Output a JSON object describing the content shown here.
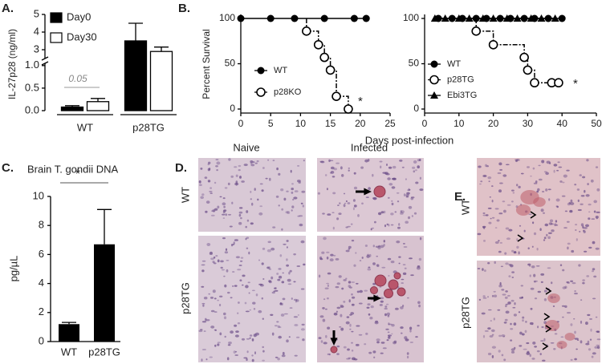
{
  "figure": {
    "panel_labels": [
      "A.",
      "B.",
      "C.",
      "D.",
      "E."
    ],
    "d_columns": [
      "Naive",
      "Infected"
    ],
    "d_rows": [
      "WT",
      "p28TG"
    ],
    "e_rows": [
      "WT",
      "p28TG"
    ]
  },
  "chart_data": [
    {
      "type": "bar",
      "ylabel": "IL-27p28 (ng/ml)",
      "categories": [
        "WT",
        "p28TG"
      ],
      "series": [
        {
          "name": "Day0",
          "color": "#000000",
          "values": [
            0.08,
            3.5
          ],
          "errors": [
            0.03,
            1.0
          ]
        },
        {
          "name": "Day30",
          "color": "#ffffff",
          "values": [
            0.2,
            2.9
          ],
          "errors": [
            0.07,
            0.25
          ]
        }
      ],
      "ylim": [
        0,
        5
      ],
      "ybreak": [
        1.05,
        2.5
      ],
      "yticks": [
        {
          "value": 0,
          "label": "0.0"
        },
        0.5,
        {
          "value": 1,
          "label": "1.0"
        },
        3,
        4,
        5
      ],
      "annotation": "0.05",
      "legend": "upper left"
    },
    {
      "type": "line",
      "ylabel": "Percent Survival",
      "xlabel": "Days post-infection",
      "series": [
        {
          "name": "WT",
          "marker": "circle",
          "x": [
            0,
            5,
            9,
            14,
            19,
            21
          ],
          "values": [
            100,
            100,
            100,
            100,
            100,
            100
          ]
        },
        {
          "name": "p28KO",
          "marker": "open-circle",
          "step": true,
          "x": [
            11,
            13,
            14,
            15,
            16,
            18
          ],
          "values": [
            86,
            71,
            57,
            43,
            14,
            0
          ]
        }
      ],
      "xlim": [
        0,
        25
      ],
      "xticks": [
        0,
        5,
        10,
        15,
        20,
        25
      ],
      "ylim": [
        0,
        100
      ],
      "yticks": [
        0,
        50,
        100
      ],
      "annotation": "*",
      "legend": "lower left"
    },
    {
      "type": "line",
      "series": [
        {
          "name": "WT",
          "marker": "circle",
          "x": [
            4,
            8,
            11,
            15,
            18,
            22,
            25,
            29,
            32,
            36,
            40
          ],
          "values": [
            100,
            100,
            100,
            100,
            100,
            100,
            100,
            100,
            100,
            100,
            100
          ]
        },
        {
          "name": "p28TG",
          "marker": "open-circle",
          "step": true,
          "x": [
            15,
            20,
            29,
            30,
            32,
            37,
            39
          ],
          "values": [
            86,
            71,
            57,
            43,
            29,
            29,
            29
          ]
        },
        {
          "name": "Ebi3TG",
          "marker": "triangle",
          "x": [
            3,
            6,
            10,
            13,
            17,
            20,
            24,
            27,
            31,
            34,
            38
          ],
          "values": [
            100,
            100,
            100,
            100,
            100,
            100,
            100,
            100,
            100,
            100,
            100
          ]
        }
      ],
      "xlim": [
        0,
        50
      ],
      "xticks": [
        0,
        10,
        20,
        30,
        40,
        50
      ],
      "ylim": [
        0,
        100
      ],
      "yticks": [
        0,
        50,
        100
      ],
      "annotation": "*",
      "legend": "lower left"
    },
    {
      "type": "bar",
      "title": "Brain T. gondii DNA",
      "ylabel": "pg/µL",
      "categories": [
        "WT",
        "p28TG"
      ],
      "values": [
        1.2,
        6.7
      ],
      "errors": [
        0.12,
        2.4
      ],
      "color": "#000000",
      "ylim": [
        0,
        10
      ],
      "yticks": [
        0,
        2,
        4,
        6,
        8,
        10
      ],
      "annotation": "*"
    }
  ]
}
